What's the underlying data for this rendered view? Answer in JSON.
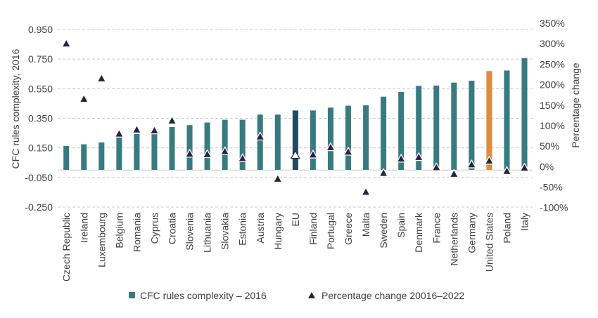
{
  "chart_data": {
    "type": "bar",
    "title": "",
    "xlabel": "",
    "ylabel": "CFC rules complexity, 2016",
    "y2label": "Percentage change",
    "ylim": [
      -0.25,
      0.95
    ],
    "yticks": [
      0.95,
      0.75,
      0.55,
      0.35,
      0.15,
      -0.05,
      -0.25
    ],
    "ytick_labels": [
      "0.950",
      "0.750",
      "0.550",
      "0.350",
      "0.150",
      "-0.050",
      "-0.250"
    ],
    "y2lim": [
      -100,
      350
    ],
    "y2ticks": [
      350,
      300,
      250,
      200,
      150,
      100,
      50,
      0,
      -50,
      -100
    ],
    "y2tick_labels": [
      "350%",
      "300%",
      "250%",
      "200%",
      "150%",
      "100%",
      "50%",
      "0%",
      "-50%",
      "-100%"
    ],
    "grid": true,
    "legend_position": "bottom",
    "categories": [
      "Czech Republic",
      "Ireland",
      "Luxembourg",
      "Belgium",
      "Romania",
      "Cyprus",
      "Croatia",
      "Slovenia",
      "Lithuania",
      "Slovakia",
      "Estonia",
      "Austria",
      "Hungary",
      "EU",
      "Finland",
      "Portugal",
      "Greece",
      "Malta",
      "Sweden",
      "Spain",
      "Denmark",
      "France",
      "Netherlands",
      "Germany",
      "United States",
      "Poland",
      "Italy"
    ],
    "series": [
      {
        "name": "CFC rules complexity – 2016",
        "type": "bar",
        "axis": "left",
        "color": "#377b81",
        "highlight_colors": {
          "EU": "#1f4a60",
          "United States": "#e38a3c"
        },
        "values": [
          0.164,
          0.175,
          0.188,
          0.223,
          0.245,
          0.245,
          0.292,
          0.305,
          0.322,
          0.341,
          0.341,
          0.376,
          0.376,
          0.404,
          0.404,
          0.423,
          0.436,
          0.439,
          0.497,
          0.529,
          0.57,
          0.572,
          0.592,
          0.605,
          0.67,
          0.674,
          0.758
        ]
      },
      {
        "name": "Percentage change 20016–2022",
        "type": "scatter",
        "marker": "triangle",
        "axis": "right",
        "color": "#2a2340",
        "highlight_marker_fill": {
          "EU": "#ffffff"
        },
        "values": [
          310,
          175,
          225,
          90,
          100,
          98,
          122,
          41,
          40,
          47,
          30,
          83,
          -20,
          38,
          39,
          57,
          46,
          -52,
          -6,
          29,
          33,
          8,
          -8,
          15,
          24,
          -1,
          7
        ]
      }
    ]
  }
}
